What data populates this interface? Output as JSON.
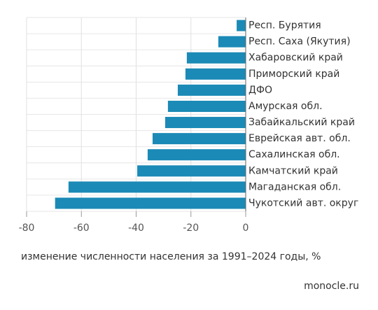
{
  "chart_data": {
    "type": "barh",
    "categories": [
      "Респ. Бурятия",
      "Респ. Саха (Якутия)",
      "Хабаровский край",
      "Приморский край",
      "ДФО",
      "Амурская обл.",
      "Забайкальский край",
      "Еврейская авт. обл.",
      "Сахалинская обл.",
      "Камчатский край",
      "Магаданская обл.",
      "Чукотский авт. округ"
    ],
    "values": [
      -3.3,
      -10,
      -21.5,
      -22,
      -24.8,
      -28.4,
      -29.4,
      -34,
      -35.8,
      -39.6,
      -64.7,
      -69.6
    ],
    "color": "#1b8ab6",
    "xlim": [
      -80,
      0
    ],
    "xticks": [
      -80,
      -60,
      -40,
      -20,
      0
    ],
    "x_label": "изменение численности населения за 1991–2024 годы, %",
    "source": "monocle.ru",
    "grid": true
  }
}
